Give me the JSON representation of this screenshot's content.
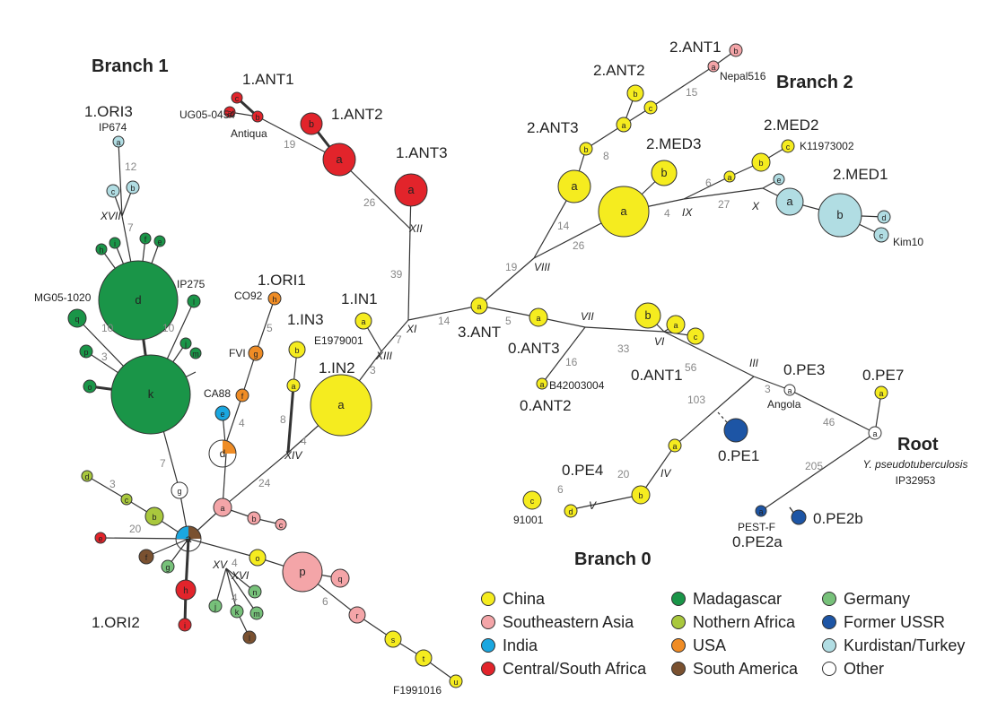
{
  "branch_titles": {
    "b1": "Branch 1",
    "b2": "Branch 2",
    "b0": "Branch 0",
    "root": "Root"
  },
  "root_labels": {
    "species": "Y. pseudotuberculosis",
    "strain": "IP32953"
  },
  "colors": {
    "china": "#f5ec1f",
    "seasia": "#f4a5a8",
    "india": "#1aa7e0",
    "csafrica": "#e2242b",
    "madagascar": "#1a9548",
    "nafrica": "#a9c83d",
    "usa": "#ef8c25",
    "samerica": "#7a5130",
    "germany": "#77c17a",
    "ussr": "#1d55a5",
    "kurdistan": "#b1dde3",
    "other": "#ffffff",
    "edge": "#333333",
    "edge_label": "#888888"
  },
  "legend": [
    {
      "label": "China",
      "color": "#f5ec1f"
    },
    {
      "label": "Southeastern Asia",
      "color": "#f4a5a8"
    },
    {
      "label": "India",
      "color": "#1aa7e0"
    },
    {
      "label": "Central/South Africa",
      "color": "#e2242b"
    },
    {
      "label": "Madagascar",
      "color": "#1a9548"
    },
    {
      "label": "Nothern Africa",
      "color": "#a9c83d"
    },
    {
      "label": "USA",
      "color": "#ef8c25"
    },
    {
      "label": "South America",
      "color": "#7a5130"
    },
    {
      "label": "Germany",
      "color": "#77c17a"
    },
    {
      "label": "Former USSR",
      "color": "#1d55a5"
    },
    {
      "label": "Kurdistan/Turkey",
      "color": "#b1dde3"
    },
    {
      "label": "Other",
      "color": "#ffffff"
    }
  ],
  "group_labels": [
    "1.ANT1",
    "1.ANT2",
    "1.ANT3",
    "1.ORI3",
    "1.ORI1",
    "1.IN1",
    "1.IN3",
    "1.IN2",
    "1.ORI2",
    "2.ANT1",
    "2.ANT2",
    "2.ANT3",
    "2.MED3",
    "2.MED2",
    "2.MED1",
    "3.ANT",
    "0.ANT3",
    "0.ANT1",
    "0.ANT2",
    "0.PE3",
    "0.PE7",
    "0.PE1",
    "0.PE4",
    "0.PE2b",
    "0.PE2a"
  ],
  "strain_labels": [
    "UG05-0454",
    "Antiqua",
    "IP674",
    "MG05-1020",
    "IP275",
    "CO92",
    "FVI",
    "CA88",
    "E1979001",
    "Nepal516",
    "K11973002",
    "Kim10",
    "B42003004",
    "Angola",
    "91001",
    "PEST-F",
    "F1991016"
  ],
  "edge_labels": [
    "19",
    "26",
    "39",
    "12",
    "7",
    "10",
    "10",
    "3",
    "5",
    "4",
    "8",
    "3",
    "7",
    "4",
    "24",
    "7",
    "3",
    "20",
    "4",
    "4",
    "6",
    "15",
    "8",
    "14",
    "26",
    "19",
    "14",
    "5",
    "6",
    "4",
    "27",
    "16",
    "33",
    "56",
    "103",
    "3",
    "46",
    "205",
    "20",
    "6"
  ],
  "roman_labels": [
    "XVII",
    "XII",
    "XIII",
    "XI",
    "XIV",
    "XV",
    "XVI",
    "VIII",
    "IX",
    "X",
    "VII",
    "VI",
    "III",
    "IV",
    "V"
  ]
}
